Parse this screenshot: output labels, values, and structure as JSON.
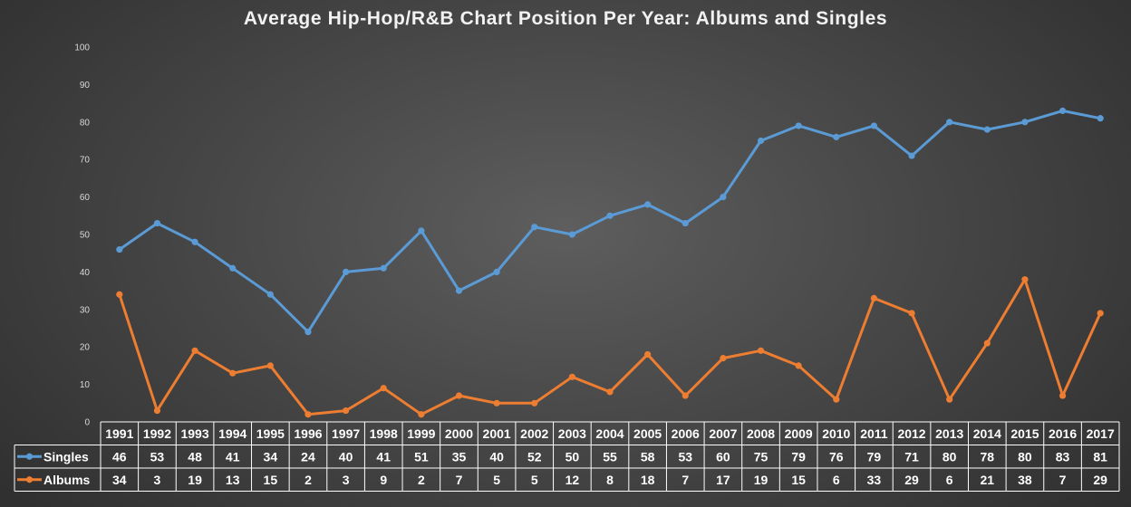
{
  "chart_data": {
    "type": "line",
    "title": "Average Hip-Hop/R&B Chart Position Per Year: Albums and Singles",
    "categories": [
      "1991",
      "1992",
      "1993",
      "1994",
      "1995",
      "1996",
      "1997",
      "1998",
      "1999",
      "2000",
      "2001",
      "2002",
      "2003",
      "2004",
      "2005",
      "2006",
      "2007",
      "2008",
      "2009",
      "2010",
      "2011",
      "2012",
      "2013",
      "2014",
      "2015",
      "2016",
      "2017"
    ],
    "series": [
      {
        "name": "Singles",
        "color": "#5b9bd5",
        "values": [
          46,
          53,
          48,
          41,
          34,
          24,
          40,
          41,
          51,
          35,
          40,
          52,
          50,
          55,
          58,
          53,
          60,
          75,
          79,
          76,
          79,
          71,
          80,
          78,
          80,
          83,
          81
        ]
      },
      {
        "name": "Albums",
        "color": "#ed7d31",
        "values": [
          34,
          3,
          19,
          13,
          15,
          2,
          3,
          9,
          2,
          7,
          5,
          5,
          12,
          8,
          18,
          7,
          17,
          19,
          15,
          6,
          33,
          29,
          6,
          21,
          38,
          7,
          29
        ]
      }
    ],
    "ylim": [
      0,
      100
    ],
    "yticks": [
      0,
      10,
      20,
      30,
      40,
      50,
      60,
      70,
      80,
      90,
      100
    ],
    "grid": false,
    "legend": "data-table"
  }
}
